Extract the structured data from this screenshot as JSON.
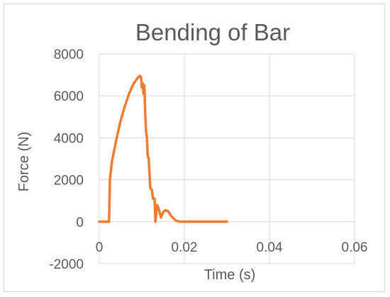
{
  "chart_data": {
    "type": "line",
    "title": "Bending of Bar",
    "xlabel": "Time (s)",
    "ylabel": "Force (N)",
    "xlim": [
      0,
      0.06
    ],
    "ylim": [
      -2000,
      8000
    ],
    "x_ticks": [
      "0",
      "0.02",
      "0.04",
      "0.06"
    ],
    "y_ticks": [
      "-2000",
      "0",
      "2000",
      "4000",
      "6000",
      "8000"
    ],
    "grid": true,
    "legend": "none",
    "series_color": "#ed7d31",
    "series": [
      {
        "points": [
          [
            0,
            0
          ],
          [
            0.0023,
            0
          ],
          [
            0.0025,
            2000
          ],
          [
            0.003,
            2900
          ],
          [
            0.004,
            3900
          ],
          [
            0.005,
            4800
          ],
          [
            0.006,
            5500
          ],
          [
            0.007,
            6100
          ],
          [
            0.008,
            6550
          ],
          [
            0.009,
            6850
          ],
          [
            0.0095,
            6950
          ],
          [
            0.0098,
            6900
          ],
          [
            0.01,
            6400
          ],
          [
            0.0102,
            6600
          ],
          [
            0.0104,
            6100
          ],
          [
            0.0106,
            6500
          ],
          [
            0.0108,
            5200
          ],
          [
            0.011,
            4300
          ],
          [
            0.0112,
            4000
          ],
          [
            0.0114,
            3100
          ],
          [
            0.0116,
            3050
          ],
          [
            0.0118,
            2300
          ],
          [
            0.012,
            1600
          ],
          [
            0.0124,
            1500
          ],
          [
            0.0126,
            1100
          ],
          [
            0.013,
            1100
          ],
          [
            0.0132,
            0
          ],
          [
            0.0136,
            800
          ],
          [
            0.014,
            600
          ],
          [
            0.0145,
            200
          ],
          [
            0.015,
            450
          ],
          [
            0.0155,
            550
          ],
          [
            0.0162,
            500
          ],
          [
            0.017,
            250
          ],
          [
            0.018,
            50
          ],
          [
            0.019,
            0
          ],
          [
            0.03,
            0
          ]
        ]
      }
    ]
  }
}
